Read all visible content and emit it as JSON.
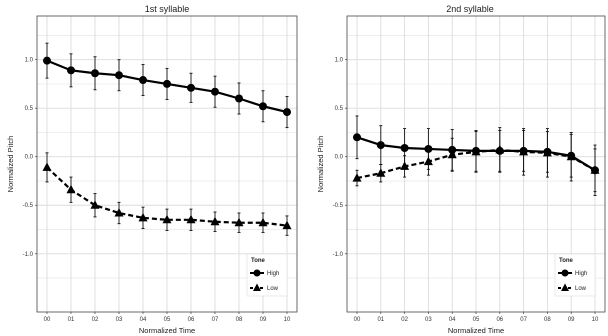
{
  "chart_data": [
    {
      "type": "line",
      "title": "1st syllable",
      "xlabel": "Normalized Time",
      "ylabel": "Normalized Pitch",
      "categories": [
        "00",
        "01",
        "02",
        "03",
        "04",
        "05",
        "06",
        "07",
        "08",
        "09",
        "10"
      ],
      "yticks": [
        "-1.0",
        "-0.5",
        "0.0",
        "0.5",
        "1.0"
      ],
      "ylim": [
        -1.6,
        1.45
      ],
      "grid": true,
      "legend": {
        "title": "Tone",
        "position": "bottom-right"
      },
      "series": [
        {
          "name": "High",
          "marker": "circle",
          "line": "solid",
          "values": [
            0.99,
            0.89,
            0.86,
            0.84,
            0.79,
            0.75,
            0.71,
            0.67,
            0.6,
            0.52,
            0.46
          ],
          "error": [
            0.18,
            0.17,
            0.17,
            0.16,
            0.16,
            0.16,
            0.15,
            0.16,
            0.16,
            0.16,
            0.16
          ]
        },
        {
          "name": "Low",
          "marker": "triangle",
          "line": "dashed",
          "values": [
            -0.11,
            -0.34,
            -0.5,
            -0.58,
            -0.63,
            -0.65,
            -0.65,
            -0.67,
            -0.68,
            -0.68,
            -0.71
          ],
          "error": [
            0.15,
            0.13,
            0.12,
            0.11,
            0.11,
            0.11,
            0.11,
            0.1,
            0.1,
            0.1,
            0.1
          ]
        }
      ]
    },
    {
      "type": "line",
      "title": "2nd syllable",
      "xlabel": "Normalized Time",
      "ylabel": "Normalized Pitch",
      "categories": [
        "00",
        "01",
        "02",
        "03",
        "04",
        "05",
        "06",
        "07",
        "08",
        "09",
        "10"
      ],
      "yticks": [
        "-1.0",
        "-0.5",
        "0.0",
        "0.5",
        "1.0"
      ],
      "ylim": [
        -1.6,
        1.45
      ],
      "grid": true,
      "legend": {
        "title": "Tone",
        "position": "bottom-right"
      },
      "series": [
        {
          "name": "High",
          "marker": "circle",
          "line": "solid",
          "values": [
            0.2,
            0.12,
            0.09,
            0.08,
            0.07,
            0.06,
            0.06,
            0.06,
            0.05,
            0.01,
            -0.14
          ],
          "error": [
            0.22,
            0.2,
            0.2,
            0.21,
            0.21,
            0.21,
            0.21,
            0.21,
            0.21,
            0.22,
            0.22
          ]
        },
        {
          "name": "Low",
          "marker": "triangle",
          "line": "dashed",
          "values": [
            -0.22,
            -0.17,
            -0.1,
            -0.05,
            0.02,
            0.05,
            0.07,
            0.05,
            0.04,
            0.0,
            -0.14
          ],
          "error": [
            0.08,
            0.09,
            0.11,
            0.14,
            0.17,
            0.21,
            0.23,
            0.24,
            0.25,
            0.25,
            0.26
          ]
        }
      ]
    }
  ]
}
